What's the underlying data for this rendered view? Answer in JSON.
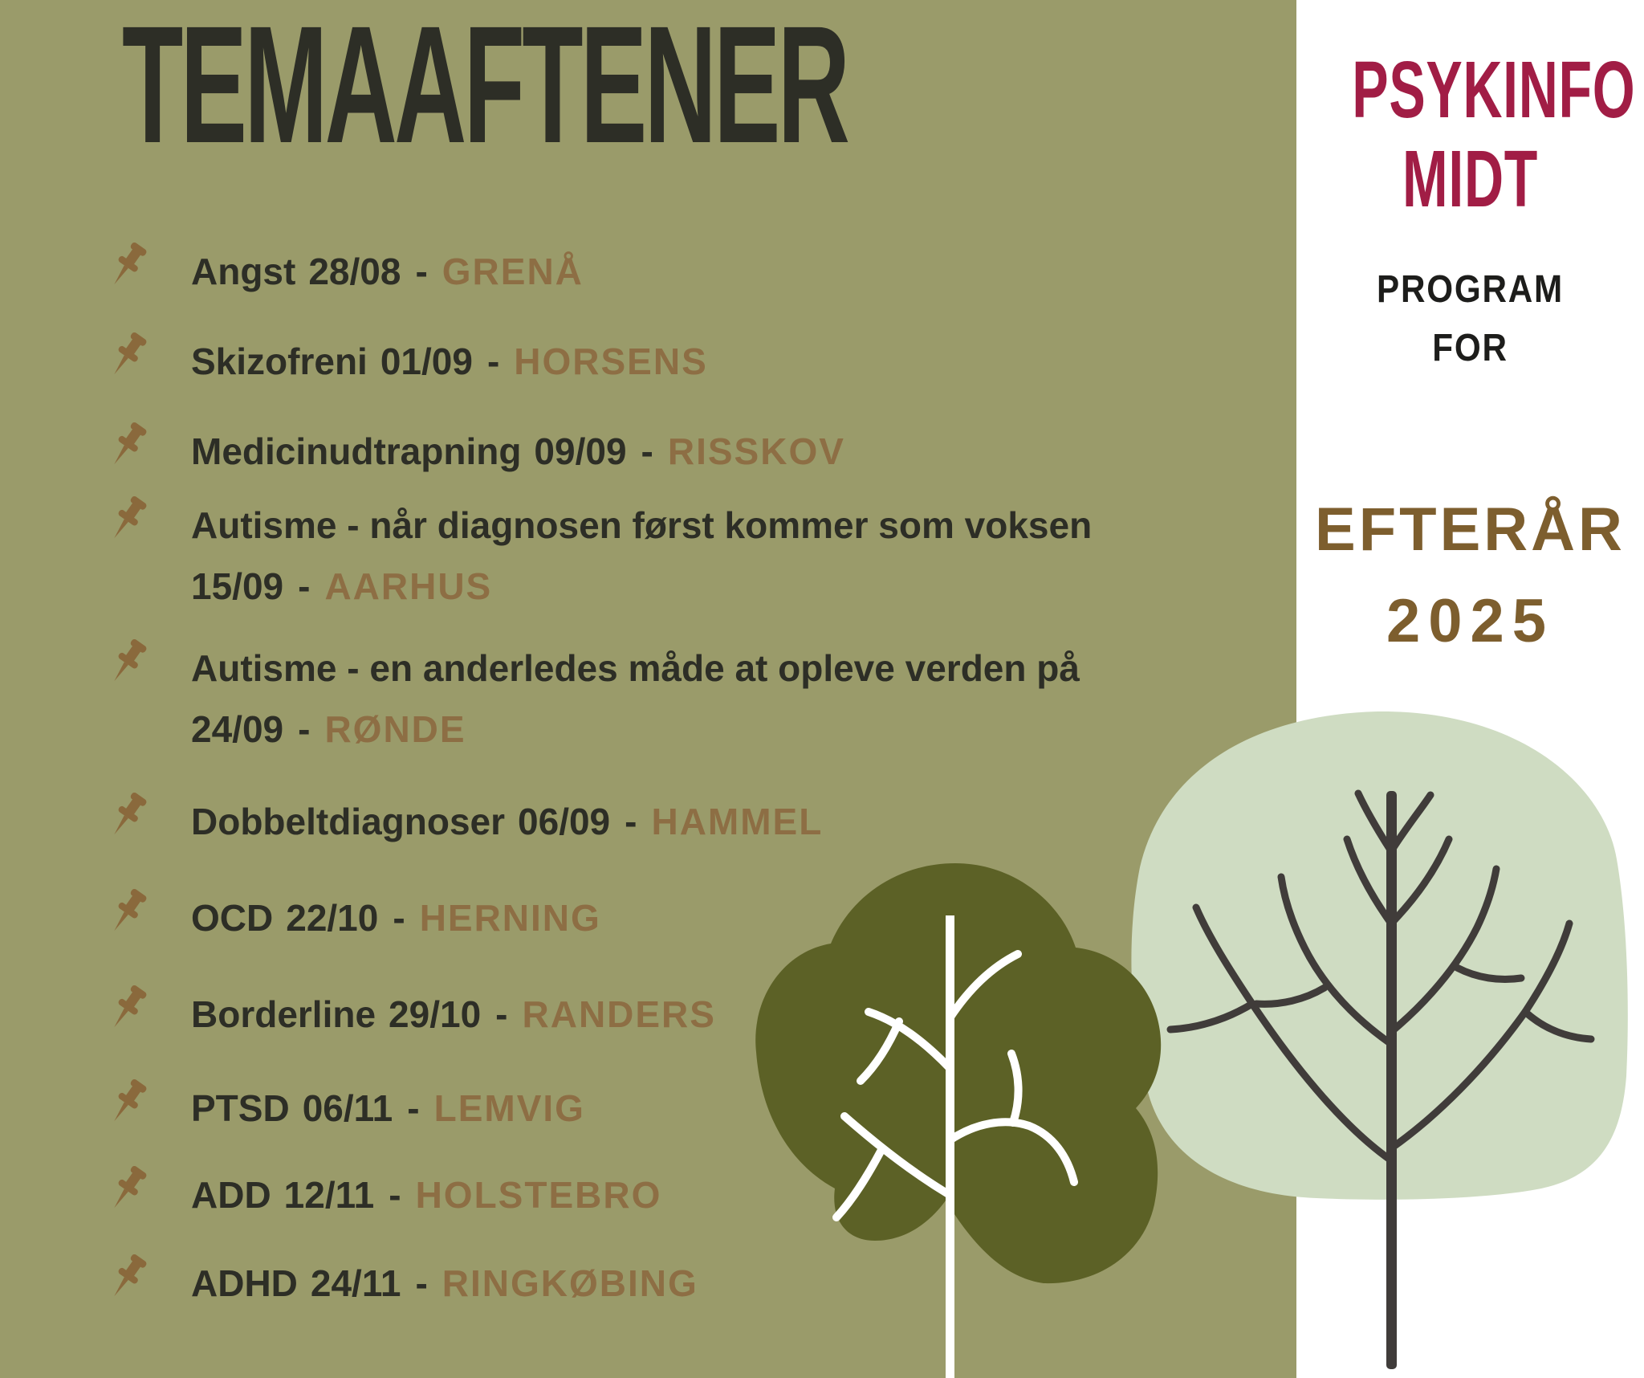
{
  "poster": {
    "title": "TEMAAFTENER",
    "separator": "-",
    "events": [
      {
        "topic": "Angst",
        "date": "28/08",
        "location": "GRENÅ",
        "two_lines": false
      },
      {
        "topic": "Skizofreni",
        "date": "01/09",
        "location": "HORSENS",
        "two_lines": false
      },
      {
        "topic": "Medicinudtrapning",
        "date": "09/09",
        "location": "RISSKOV",
        "two_lines": false
      },
      {
        "topic": "Autisme - når diagnosen først kommer som voksen",
        "date": "15/09",
        "location": "AARHUS",
        "two_lines": true
      },
      {
        "topic": "Autisme - en anderledes måde at opleve verden på",
        "date": "24/09",
        "location": "RØNDE",
        "two_lines": true
      },
      {
        "topic": "Dobbeltdiagnoser",
        "date": "06/09",
        "location": "HAMMEL",
        "two_lines": false
      },
      {
        "topic": "OCD",
        "date": "22/10",
        "location": "HERNING",
        "two_lines": false
      },
      {
        "topic": "Borderline",
        "date": "29/10",
        "location": "RANDERS",
        "two_lines": false
      },
      {
        "topic": "PTSD",
        "date": "06/11",
        "location": "LEMVIG",
        "two_lines": false
      },
      {
        "topic": "ADD",
        "date": "12/11",
        "location": "HOLSTEBRO",
        "two_lines": false
      },
      {
        "topic": "ADHD",
        "date": "24/11",
        "location": "RINGKØBING",
        "two_lines": false
      }
    ]
  },
  "sidebar": {
    "brand_line1": "PSYKINFO",
    "brand_line2": "MIDT",
    "program_line1": "PROGRAM",
    "program_line2": "FOR",
    "season_line1": "EFTERÅR",
    "season_line2": "2025"
  },
  "icons": {
    "event_bullet": "pushpin-icon",
    "decorations": [
      "dark-tree-illustration",
      "light-tree-illustration"
    ]
  },
  "colors": {
    "background_panel": "#9a9b6a",
    "sidebar_background": "#ffffff",
    "title_text": "#2d2e26",
    "location_text": "#8d6e44",
    "pushpin": "#8a693c",
    "brand_text": "#a11d45",
    "program_text": "#1d1d1b",
    "season_text": "#7d5e2e",
    "dark_tree": "#5c6126",
    "light_tree": "#cfdcc2",
    "tree_trunk_dark": "#403c3a",
    "tree_trunk_light": "#ffffff"
  }
}
